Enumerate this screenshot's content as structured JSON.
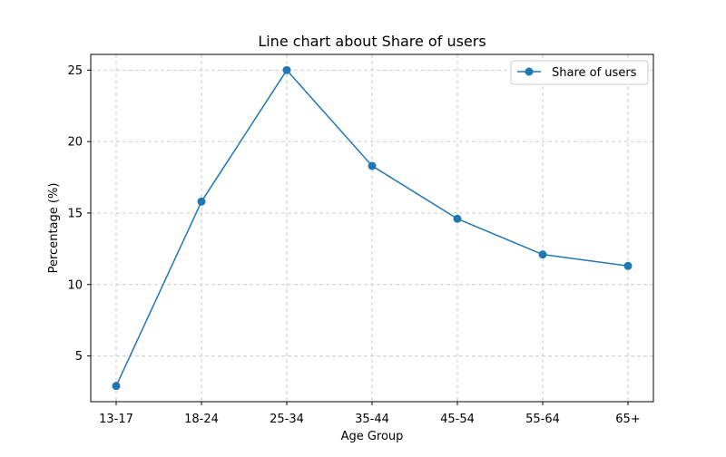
{
  "chart_data": {
    "type": "line",
    "title": "Line chart about Share of users",
    "xlabel": "Age Group",
    "ylabel": "Percentage (%)",
    "categories": [
      "13-17",
      "18-24",
      "25-34",
      "35-44",
      "45-54",
      "55-64",
      "65+"
    ],
    "series": [
      {
        "name": "Share of users",
        "values": [
          2.9,
          15.8,
          25.0,
          18.3,
          14.6,
          12.1,
          11.3
        ],
        "color": "#1f77b4",
        "marker": "circle"
      }
    ],
    "ylim": [
      1.8,
      26.1
    ],
    "yticks": [
      5,
      10,
      15,
      20,
      25
    ],
    "grid": true,
    "legend": "upper-right"
  }
}
